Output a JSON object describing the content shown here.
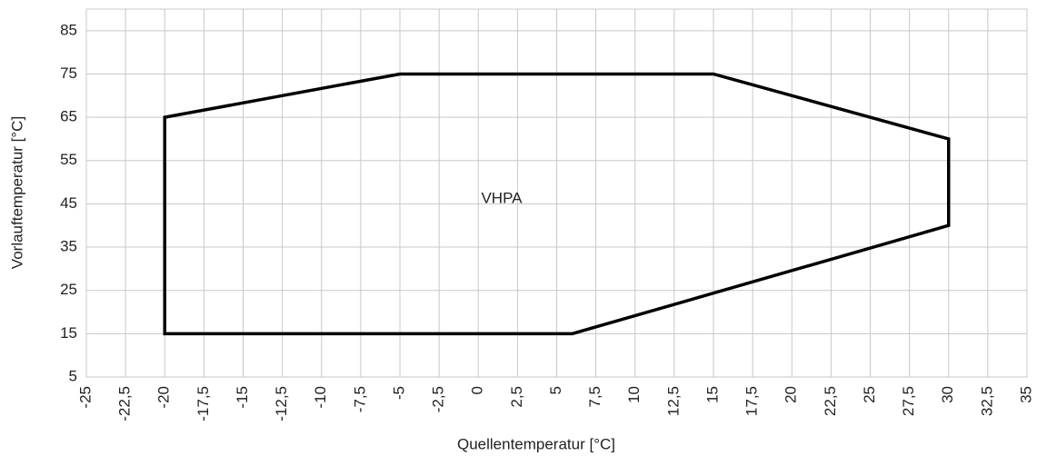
{
  "chart_data": {
    "type": "line",
    "x_label": "Quellentemperatur [°C]",
    "y_label": "Vorlauftemperatur [°C]",
    "annotation": "VHPA",
    "x": [
      -20,
      -20,
      -5,
      15,
      30,
      30,
      6
    ],
    "series": [
      {
        "color": "#000000",
        "values": [
          15,
          65,
          75,
          75,
          60,
          40,
          15
        ]
      }
    ],
    "closed": true,
    "xlim": [
      -25,
      35
    ],
    "xticks": [
      -25,
      {
        "value": -22.5,
        "label": "-22,5"
      },
      -20,
      {
        "value": -17.5,
        "label": "-17,5"
      },
      -15,
      {
        "value": -12.5,
        "label": "-12,5"
      },
      -10,
      {
        "value": -7.5,
        "label": "-7,5"
      },
      -5,
      {
        "value": -2.5,
        "label": "-2,5"
      },
      0,
      {
        "value": 2.5,
        "label": "2,5"
      },
      5,
      {
        "value": 7.5,
        "label": "7,5"
      },
      10,
      {
        "value": 12.5,
        "label": "12,5"
      },
      15,
      {
        "value": 17.5,
        "label": "17,5"
      },
      20,
      {
        "value": 22.5,
        "label": "22,5"
      },
      25,
      {
        "value": 27.5,
        "label": "27,5"
      },
      30,
      {
        "value": 32.5,
        "label": "32,5"
      },
      35
    ],
    "ylim": [
      5,
      90
    ],
    "yticks": [
      5,
      15,
      25,
      35,
      45,
      55,
      65,
      75,
      85
    ],
    "grid": true
  }
}
